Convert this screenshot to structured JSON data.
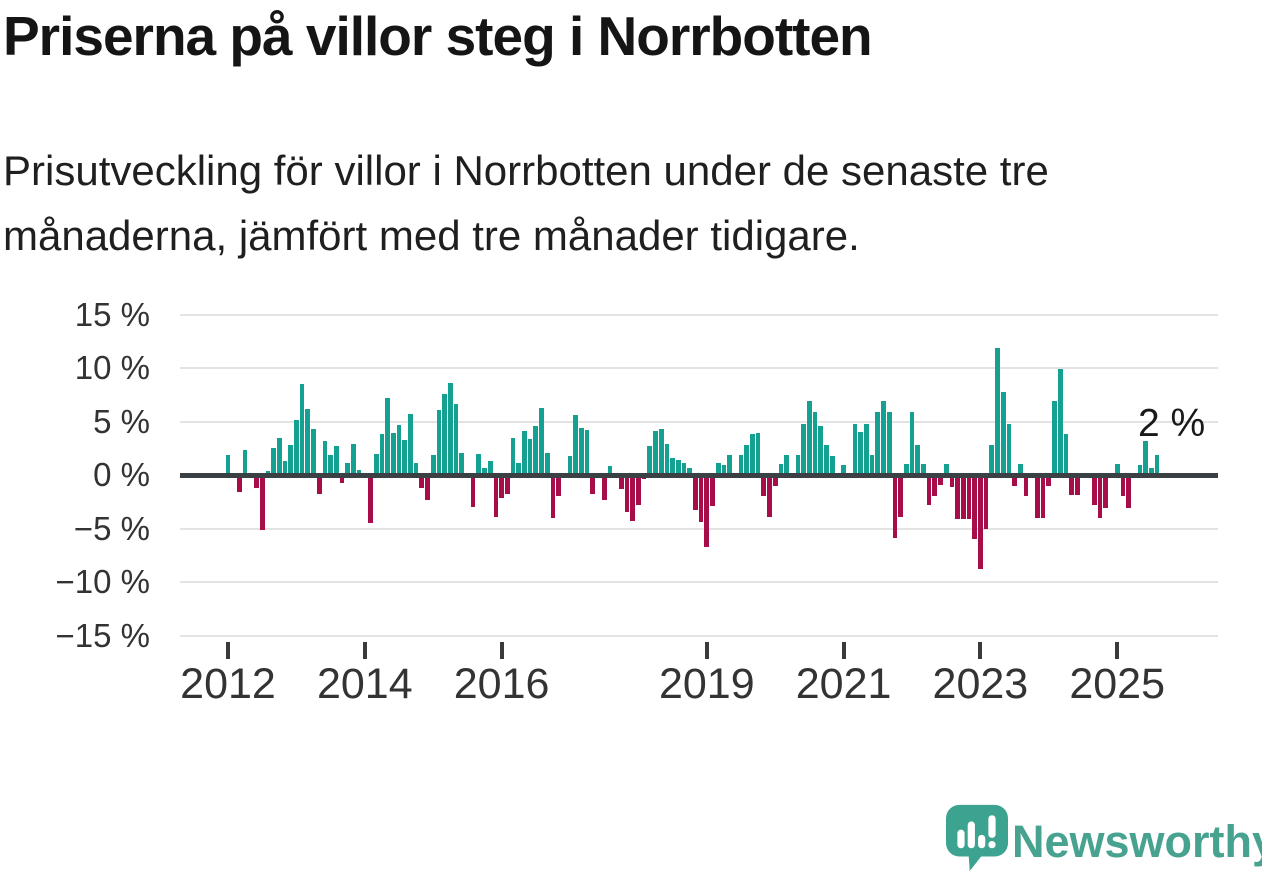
{
  "header": {
    "title": "Priserna på villor steg i Norrbotten",
    "subtitle": "Prisutveckling för villor i Norrbotten under de senaste tre månaderna, jämfört med tre månader tidigare."
  },
  "chart_data": {
    "type": "bar",
    "title": "Priserna på villor steg i Norrbotten",
    "unit": "%",
    "x_start": "2012-01",
    "x_end": "2025-08",
    "ylim": [
      -15,
      15
    ],
    "grid": true,
    "yticks": [
      15,
      10,
      5,
      0,
      -5,
      -10,
      -15
    ],
    "ytick_labels": [
      "15 %",
      "10 %",
      "5 %",
      "0 %",
      "−5 %",
      "−10 %",
      "−15 %"
    ],
    "xticks": [
      2012,
      2014,
      2016,
      2019,
      2021,
      2023,
      2025
    ],
    "xtick_labels": [
      "2012",
      "2014",
      "2016",
      "2019",
      "2021",
      "2023",
      "2025"
    ],
    "annotation": {
      "text": "2 %",
      "value": 2,
      "month": "2025-08"
    },
    "colors": {
      "positive": "#15a191",
      "negative": "#a60d49",
      "zero_line": "#3b4044",
      "grid": "#e3e3e3",
      "axis_text": "#333333"
    },
    "values_by_year": {
      "2012": [
        1.9,
        0,
        -1.6,
        2.3,
        0,
        -1.2,
        -5.1,
        0.4,
        2.5,
        3.5,
        1.3,
        2.8
      ],
      "2013": [
        5.1,
        8.5,
        6.2,
        4.3,
        -1.8,
        3.2,
        1.9,
        2.7,
        -0.7,
        1.1,
        2.9,
        0.5
      ],
      "2014": [
        0,
        -4.5,
        2.0,
        3.8,
        7.2,
        3.9,
        4.7,
        3.3,
        5.7,
        1.1,
        -1.2,
        -2.3
      ],
      "2015": [
        1.9,
        6.1,
        7.6,
        8.6,
        6.6,
        2.1,
        0,
        -3.0,
        2.0,
        0.7,
        1.3,
        -3.9
      ],
      "2016": [
        -2.1,
        -1.8,
        3.5,
        1.1,
        4.1,
        3.4,
        4.6,
        6.3,
        2.1,
        -4.0,
        -2.0,
        0
      ],
      "2017": [
        1.8,
        5.6,
        4.4,
        4.2,
        -1.8,
        0,
        -2.3,
        0.8,
        0,
        -1.3,
        -3.5,
        -4.3
      ],
      "2018": [
        -2.8,
        -0.4,
        2.7,
        4.1,
        4.3,
        2.9,
        1.6,
        1.4,
        1.1,
        0.7,
        -3.3,
        -4.4
      ],
      "2019": [
        -6.7,
        -2.9,
        1.1,
        0.9,
        1.9,
        0,
        1.9,
        2.8,
        3.8,
        3.9,
        -2.0,
        -3.9
      ],
      "2020": [
        -1.0,
        1.0,
        1.9,
        0,
        1.9,
        4.8,
        6.9,
        5.9,
        4.6,
        2.8,
        1.8,
        0
      ],
      "2021": [
        0.9,
        0,
        4.8,
        4.0,
        4.8,
        1.9,
        5.9,
        6.9,
        5.9,
        -5.9,
        -3.9,
        1.0
      ],
      "2022": [
        5.9,
        2.8,
        1.0,
        -2.8,
        -2.0,
        -0.9,
        1.0,
        -1.1,
        -4.1,
        -4.1,
        -4.1,
        -6.0
      ],
      "2023": [
        -8.8,
        -5.0,
        2.8,
        11.9,
        7.8,
        4.8,
        -1.0,
        1.0,
        -2.0,
        0,
        -4.0,
        -4.0
      ],
      "2024": [
        -1.0,
        6.9,
        9.9,
        3.8,
        -1.9,
        -1.9,
        0,
        0,
        -2.8,
        -4.0,
        -3.1,
        0
      ],
      "2025": [
        1.0,
        -2.0,
        -3.1,
        0,
        0.9,
        3.2,
        0.7,
        1.9
      ]
    }
  },
  "logo": {
    "name": "Newsworthy",
    "icon": "newsworthy-speech-bubble-chart-icon",
    "color": "#47a290",
    "bubble_color": "#3da391"
  }
}
